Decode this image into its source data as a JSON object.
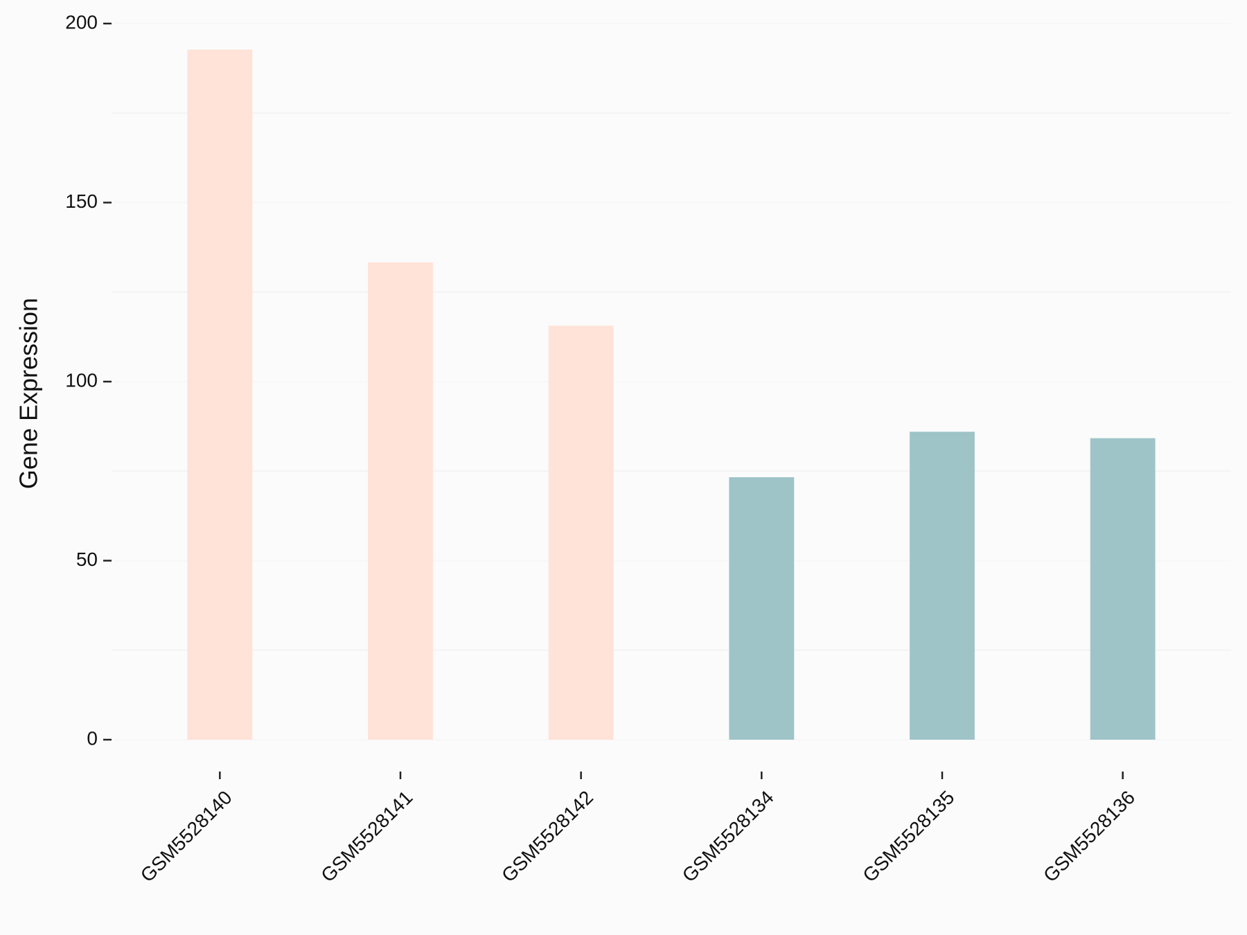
{
  "chart_data": {
    "type": "bar",
    "y_label": "Gene Expression",
    "categories": [
      "GSM5528140",
      "GSM5528141",
      "GSM5528142",
      "GSM5528134",
      "GSM5528135",
      "GSM5528136"
    ],
    "values": [
      192.7,
      133.3,
      115.6,
      73.3,
      86,
      84.2
    ],
    "colors": [
      "#FFE2D8",
      "#FFE2D8",
      "#FFE2D8",
      "#9EC4C8",
      "#9EC4C8",
      "#9EC4C8"
    ],
    "ylim": [
      0,
      200
    ],
    "yticks": [
      0,
      50,
      100,
      150,
      200
    ],
    "minor_grid": [
      25,
      75,
      125,
      175
    ],
    "grid": true
  }
}
